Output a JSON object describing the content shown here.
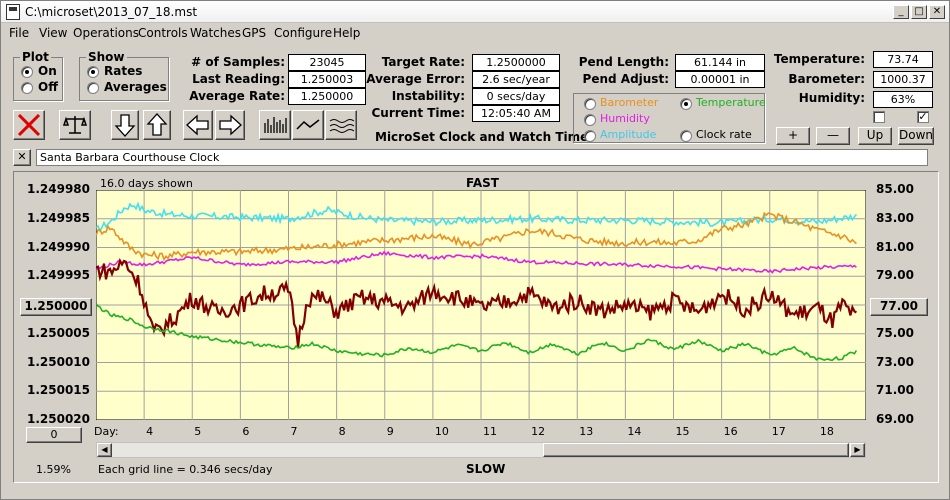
{
  "window": {
    "title": "C:\\microset\\2013_07_18.mst",
    "min": "_",
    "max": "□",
    "close": "✕"
  },
  "menu": [
    "File",
    "View",
    "Operations",
    "Controls",
    "Watches",
    "GPS",
    "Configure",
    "Help"
  ],
  "plot": {
    "caption": "Plot",
    "on": "On",
    "off": "Off"
  },
  "show": {
    "caption": "Show",
    "rates": "Rates",
    "averages": "Averages"
  },
  "stats": {
    "samples_label": "# of Samples:",
    "samples": "23045",
    "last_label": "Last Reading:",
    "last": "1.250003",
    "avg_label": "Average Rate:",
    "avg": "1.250000",
    "target_label": "Target Rate:",
    "target": "1.2500000",
    "err_label": "Average Error:",
    "err": "2.6 sec/year",
    "inst_label": "Instability:",
    "inst": "0 secs/day",
    "time_label": "Current Time:",
    "time": "12:05:40 AM",
    "pendlen_label": "Pend Length:",
    "pendlen": "61.144 in",
    "pendadj_label": "Pend Adjust:",
    "pendadj": "0.00001 in",
    "temp_label": "Temperature:",
    "temp": "73.74",
    "baro_label": "Barometer:",
    "baro": "1000.37",
    "hum_label": "Humidity:",
    "hum": "63%"
  },
  "app_title": "MicroSet Clock and Watch Timer",
  "sensor": {
    "barometer": "Barometer",
    "temperature": "Temperature",
    "humidity": "Humidity",
    "amplitude": "Amplitude",
    "clockrate": "Clock rate"
  },
  "adjust": {
    "plus": "+",
    "minus": "—",
    "up": "Up",
    "down": "Down"
  },
  "clock_name": "Santa Barbara Courthouse Clock",
  "colors": {
    "chart_bg": "#ffffcc",
    "rate": "#800000",
    "temperature": "#20b020",
    "barometer": "#e89020",
    "humidity": "#e020e0",
    "amplitude": "#40e0f0"
  },
  "chart_data": {
    "type": "line",
    "top_label": "FAST",
    "bottom_label": "SLOW",
    "days_shown": "16.0 days shown",
    "grid_note": "Each grid line = 0.346 secs/day",
    "pct": "1.59%",
    "day_label": "Day:",
    "left_ticks": [
      "1.249980",
      "1.249985",
      "1.249990",
      "1.249995",
      "1.250000",
      "1.250005",
      "1.250010",
      "1.250015",
      "1.250020"
    ],
    "right_ticks": [
      "85.00",
      "83.00",
      "81.00",
      "79.00",
      "77.00",
      "75.00",
      "73.00",
      "71.00",
      "69.00"
    ],
    "left_center": "1.250000",
    "right_center": "77.00",
    "left_bottom": "0",
    "x_ticks": [
      "4",
      "5",
      "6",
      "7",
      "8",
      "9",
      "10",
      "11",
      "12",
      "13",
      "14",
      "15",
      "16",
      "17",
      "18"
    ],
    "xlim": [
      3,
      19
    ],
    "right_ylim": [
      69,
      85
    ],
    "series": [
      {
        "key": "amplitude",
        "x": [
          3.0,
          3.3,
          3.6,
          3.8,
          4.0,
          4.5,
          5.0,
          6.0,
          7.0,
          7.8,
          8.5,
          9.0,
          10.0,
          11.0,
          12.0,
          13.0,
          14.0,
          15.0,
          16.0,
          17.0,
          18.0,
          18.8
        ],
        "y": [
          82.2,
          82.8,
          83.8,
          84.0,
          83.6,
          83.3,
          83.2,
          83.1,
          83.0,
          83.6,
          83.1,
          82.9,
          82.8,
          82.9,
          83.0,
          82.9,
          82.9,
          82.8,
          82.7,
          83.0,
          82.8,
          83.2
        ]
      },
      {
        "key": "barometer",
        "x": [
          3.0,
          3.3,
          3.7,
          4.0,
          4.5,
          5.0,
          6.0,
          7.0,
          8.0,
          9.0,
          10.0,
          10.8,
          11.5,
          12.0,
          12.5,
          13.0,
          13.5,
          14.0,
          14.5,
          15.0,
          15.5,
          16.0,
          16.5,
          17.0,
          17.5,
          18.0,
          18.5,
          18.8
        ],
        "y": [
          82.0,
          82.4,
          81.0,
          80.5,
          80.4,
          80.7,
          80.7,
          80.9,
          81.2,
          81.5,
          81.8,
          81.2,
          81.7,
          82.2,
          82.0,
          81.6,
          81.4,
          81.3,
          81.4,
          81.3,
          81.5,
          82.3,
          82.6,
          83.3,
          82.8,
          82.2,
          81.8,
          81.3
        ]
      },
      {
        "key": "humidity",
        "x": [
          3.0,
          3.5,
          4.0,
          5.0,
          6.0,
          7.0,
          8.0,
          9.0,
          10.0,
          11.0,
          12.0,
          13.0,
          14.0,
          15.0,
          16.0,
          16.7,
          17.0,
          17.5,
          18.0,
          18.8
        ],
        "y": [
          79.5,
          80.0,
          79.8,
          80.3,
          79.8,
          80.0,
          80.0,
          80.6,
          80.3,
          80.4,
          80.0,
          79.9,
          79.8,
          79.7,
          79.5,
          79.4,
          79.3,
          79.5,
          79.6,
          79.7
        ]
      },
      {
        "key": "rate",
        "x": [
          3.0,
          3.3,
          3.6,
          3.9,
          4.2,
          4.6,
          5.0,
          5.5,
          6.0,
          6.5,
          7.0,
          7.2,
          7.4,
          7.7,
          8.0,
          8.5,
          9.0,
          9.5,
          10.0,
          10.5,
          11.0,
          11.5,
          12.0,
          12.5,
          13.0,
          13.5,
          14.0,
          14.5,
          15.0,
          15.5,
          16.0,
          16.5,
          17.0,
          17.5,
          18.0,
          18.3,
          18.5,
          18.8
        ],
        "y": [
          79.5,
          79.3,
          80.0,
          78.5,
          75.0,
          76.0,
          77.5,
          76.5,
          77.0,
          77.8,
          78.0,
          74.5,
          77.5,
          77.5,
          76.5,
          77.5,
          77.2,
          76.8,
          78.0,
          77.5,
          76.8,
          77.2,
          77.8,
          76.8,
          77.3,
          76.6,
          77.0,
          76.5,
          77.3,
          76.5,
          77.8,
          76.7,
          77.7,
          76.3,
          76.8,
          75.8,
          77.0,
          76.0
        ]
      },
      {
        "key": "temperature",
        "x": [
          3.0,
          3.3,
          3.7,
          4.0,
          4.5,
          5.0,
          5.5,
          6.0,
          6.5,
          7.0,
          7.5,
          8.0,
          8.5,
          9.0,
          9.5,
          10.0,
          10.5,
          11.0,
          11.5,
          12.0,
          12.5,
          13.0,
          13.5,
          14.0,
          14.5,
          15.0,
          15.5,
          16.0,
          16.5,
          17.0,
          17.5,
          18.0,
          18.5,
          18.8
        ],
        "y": [
          77.0,
          76.3,
          76.0,
          75.5,
          75.2,
          74.8,
          74.6,
          74.4,
          74.2,
          74.0,
          74.3,
          73.8,
          73.6,
          73.5,
          74.0,
          73.7,
          74.2,
          73.8,
          74.4,
          73.7,
          74.3,
          73.6,
          74.4,
          73.8,
          74.6,
          73.9,
          74.5,
          73.8,
          74.3,
          73.5,
          74.0,
          73.2,
          73.3,
          73.8
        ]
      }
    ]
  }
}
